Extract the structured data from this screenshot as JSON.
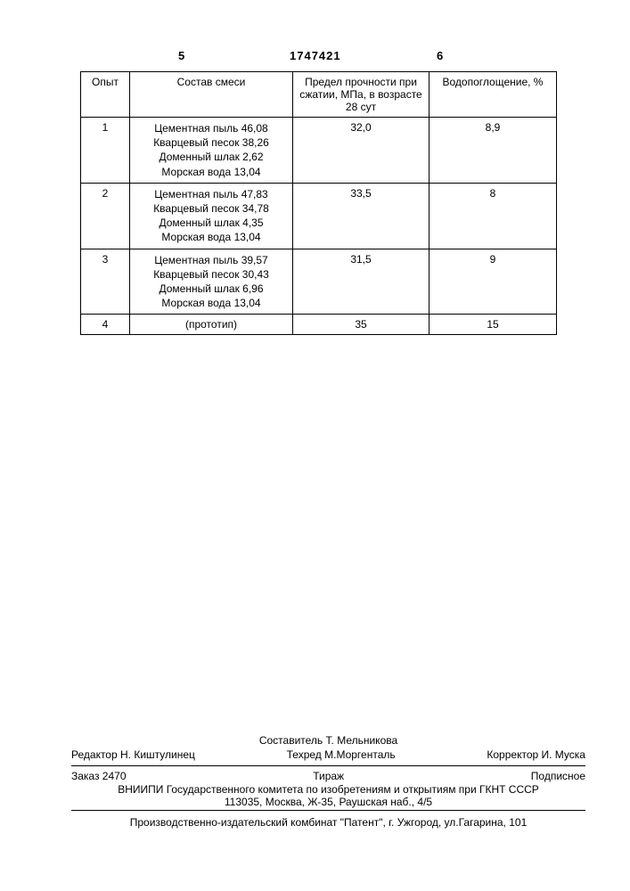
{
  "header": {
    "left_num": "5",
    "doc_num": "1747421",
    "right_num": "6"
  },
  "table": {
    "columns": {
      "c1": "Опыт",
      "c2": "Состав смеси",
      "c3": "Предел прочности при сжатии, МПа, в возрасте 28 сут",
      "c4": "Водопоглощение, %"
    },
    "rows": [
      {
        "n": "1",
        "mix": "Цементная пыль 46,08\nКварцевый песок 38,26\nДоменный шлак 2,62\nМорская вода 13,04",
        "strength": "32,0",
        "water": "8,9"
      },
      {
        "n": "2",
        "mix": "Цементная пыль 47,83\nКварцевый песок 34,78\nДоменный шлак 4,35\nМорская вода 13,04",
        "strength": "33,5",
        "water": "8"
      },
      {
        "n": "3",
        "mix": "Цементная пыль 39,57\nКварцевый песок 30,43\nДоменный шлак 6,96\nМорская вода 13,04",
        "strength": "31,5",
        "water": "9"
      },
      {
        "n": "4",
        "mix": "(прототип)",
        "strength": "35",
        "water": "15"
      }
    ]
  },
  "footer": {
    "sostavitel": "Составитель Т. Мельникова",
    "redaktor": "Редактор  Н. Киштулинец",
    "tehred": "Техред М.Моргенталь",
    "korrektor": "Корректор  И. Муска",
    "zakaz": "Заказ  2470",
    "tirazh": "Тираж",
    "podpis": "Подписное",
    "org1": "ВНИИПИ Государственного комитета по изобретениям и открытиям при ГКНТ СССР",
    "org2": "113035, Москва, Ж-35, Раушская наб., 4/5",
    "press": "Производственно-издательский комбинат \"Патент\", г. Ужгород, ул.Гагарина, 101"
  }
}
